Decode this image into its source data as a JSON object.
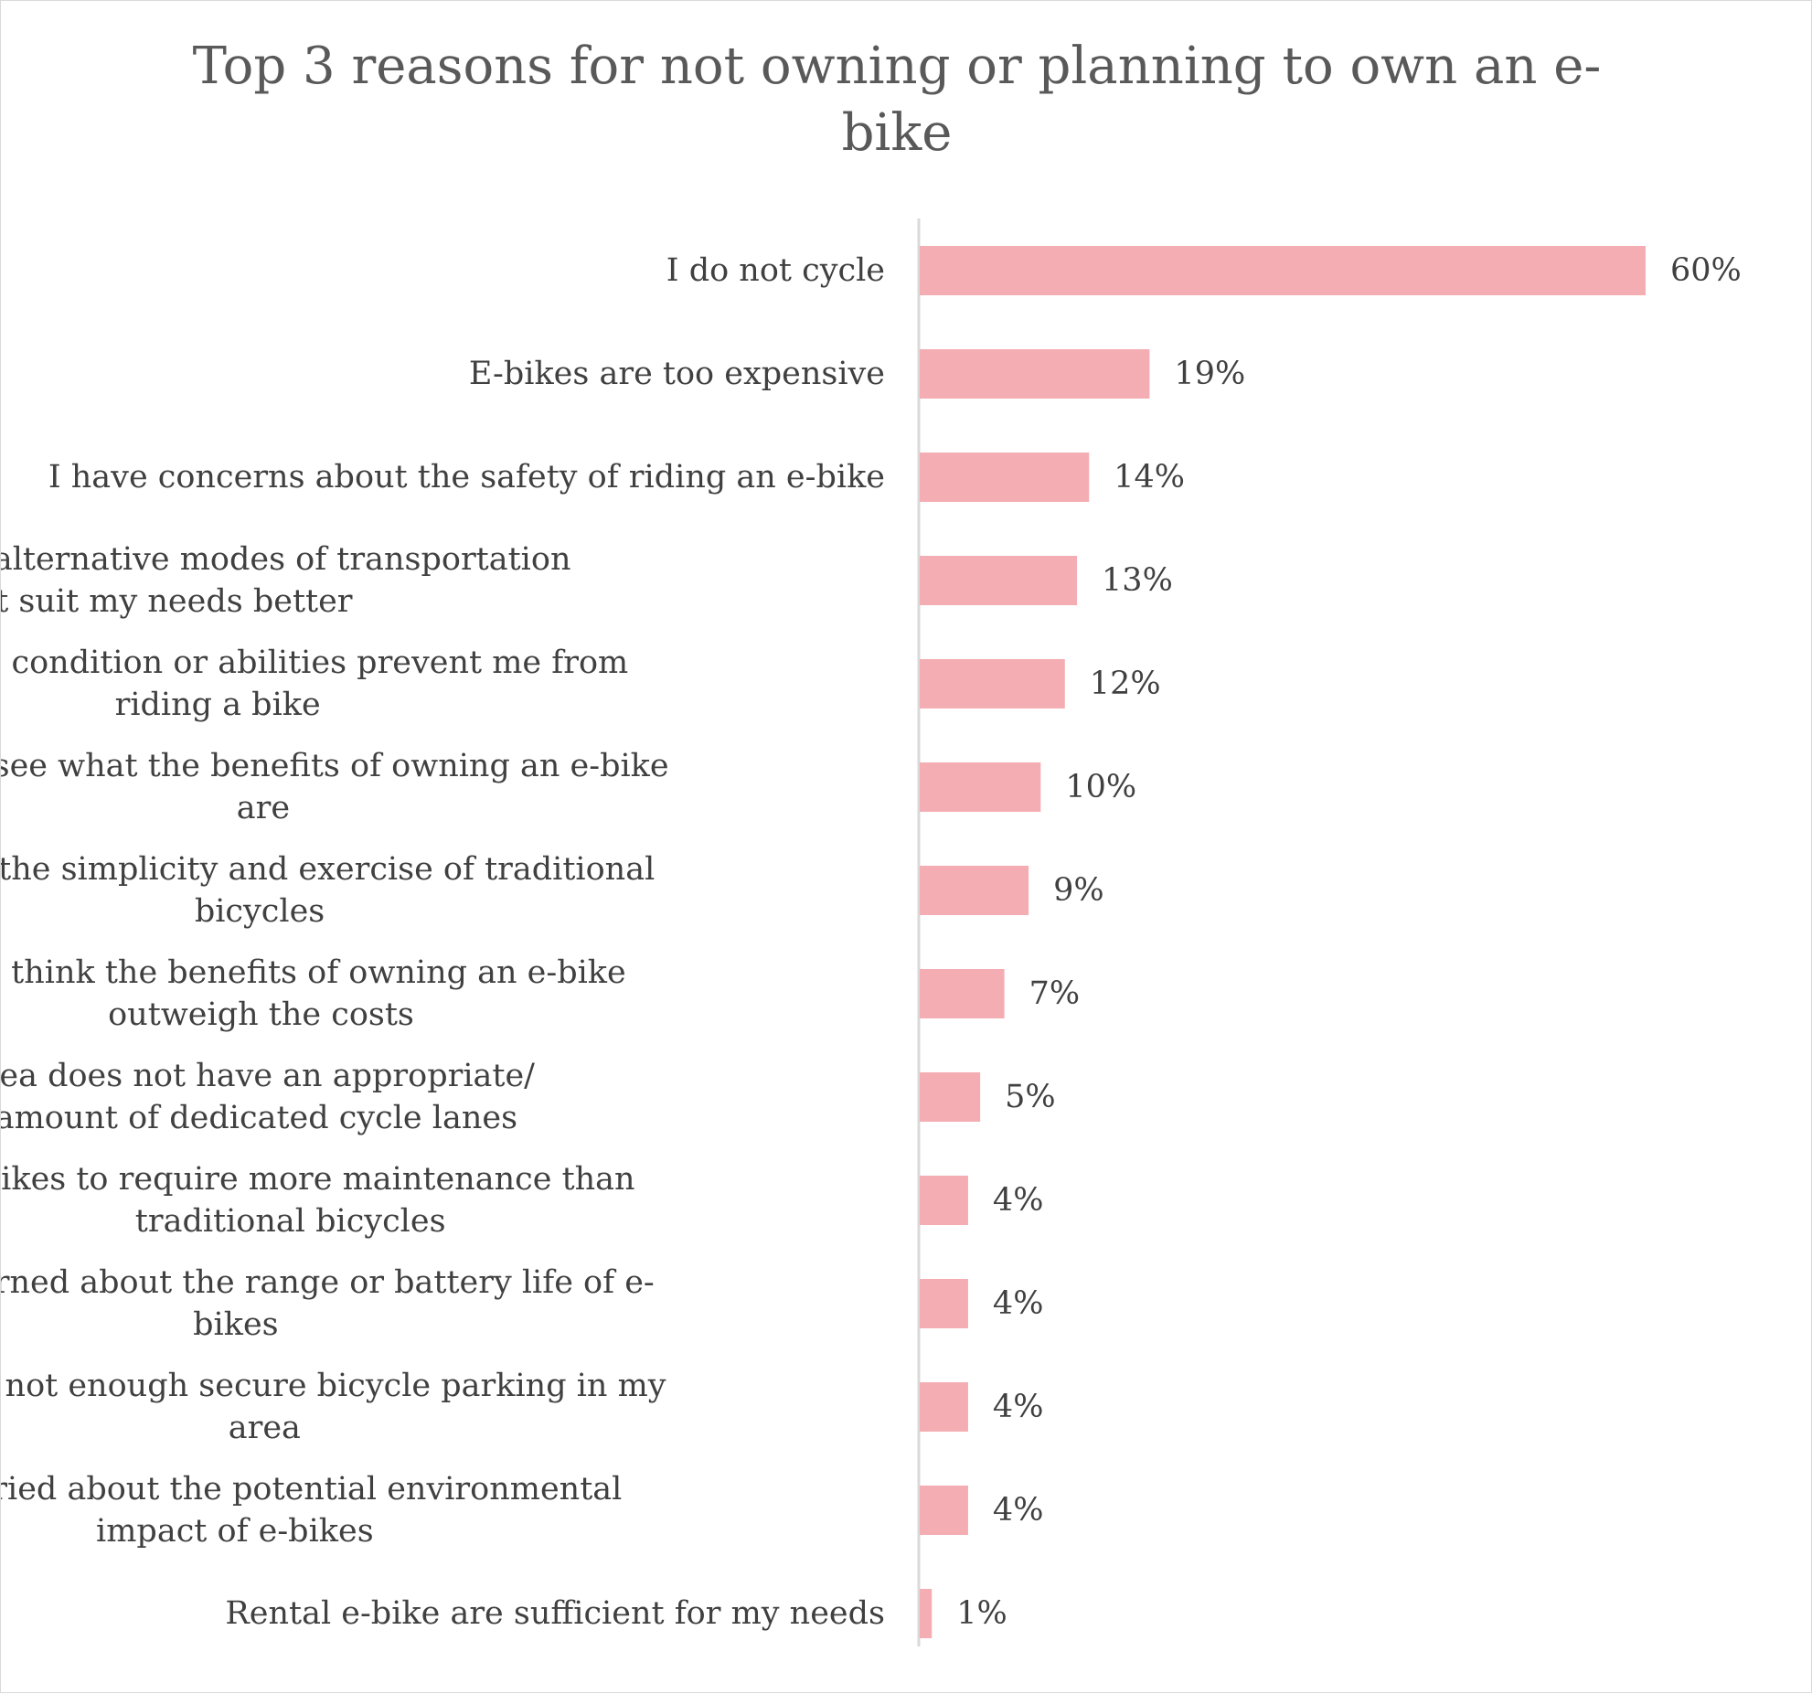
{
  "chart_data": {
    "type": "bar",
    "orientation": "horizontal",
    "title": "Top 3 reasons for not owning or planning to own an e-bike",
    "title_lines": [
      "Top 3 reasons for not owning or planning to own an e-",
      "bike"
    ],
    "xlabel": "",
    "ylabel": "",
    "xlim": [
      0,
      60
    ],
    "grid": false,
    "legend": "none",
    "categories": [
      "I do not cycle",
      "E-bikes are too expensive",
      "I have concerns about the safety of riding an e-bike",
      "I have access to alternative modes of transportation that suit my needs better",
      "My physical condition or abilities prevent me from riding a bike",
      "I do not see what the benefits of owning an e-bike are",
      "I prefer the simplicity and exercise of traditional bicycles",
      "I don't think the benefits of owning an e-bike outweigh the costs",
      "My local area does not have an appropriate/ sufficient amount of dedicated cycle lanes",
      "E-bikes to require more maintenance than traditional bicycles",
      "I am concerned about the range or battery life of e-bikes",
      "There is not enough secure bicycle parking in my area",
      "I am worried about the potential environmental impact of e-bikes",
      "Rental e-bike are sufficient for my needs"
    ],
    "category_lines": [
      [
        "I do not cycle"
      ],
      [
        "E-bikes are too expensive"
      ],
      [
        "I have concerns about the safety of riding an e-bike"
      ],
      [
        "I have access to alternative modes of transportation",
        "that suit my needs better"
      ],
      [
        "My physical condition or abilities prevent me from",
        "riding a bike"
      ],
      [
        "I do not see what the benefits of owning an e-bike",
        "are"
      ],
      [
        "I prefer the simplicity and exercise of traditional",
        "bicycles"
      ],
      [
        "I don't think the benefits of owning an e-bike",
        "outweigh the costs"
      ],
      [
        "My local area does not have an appropriate/",
        "sufficient amount of dedicated cycle lanes"
      ],
      [
        "E-bikes to require more maintenance than",
        "traditional bicycles"
      ],
      [
        "I am concerned about the range or battery life of e-",
        "bikes"
      ],
      [
        "There is not enough secure bicycle parking in my",
        "area"
      ],
      [
        "I am worried about the potential environmental",
        "impact of e-bikes"
      ],
      [
        "Rental e-bike are sufficient for my needs"
      ]
    ],
    "values": [
      60,
      19,
      14,
      13,
      12,
      10,
      9,
      7,
      5,
      4,
      4,
      4,
      4,
      1
    ],
    "value_labels": [
      "60%",
      "19%",
      "14%",
      "13%",
      "12%",
      "10%",
      "9%",
      "7%",
      "5%",
      "4%",
      "4%",
      "4%",
      "4%",
      "1%"
    ],
    "bar_color": "#f4aeb3",
    "axis_color": "#d9d9d9",
    "text_color": "#404040",
    "title_color": "#595959"
  }
}
